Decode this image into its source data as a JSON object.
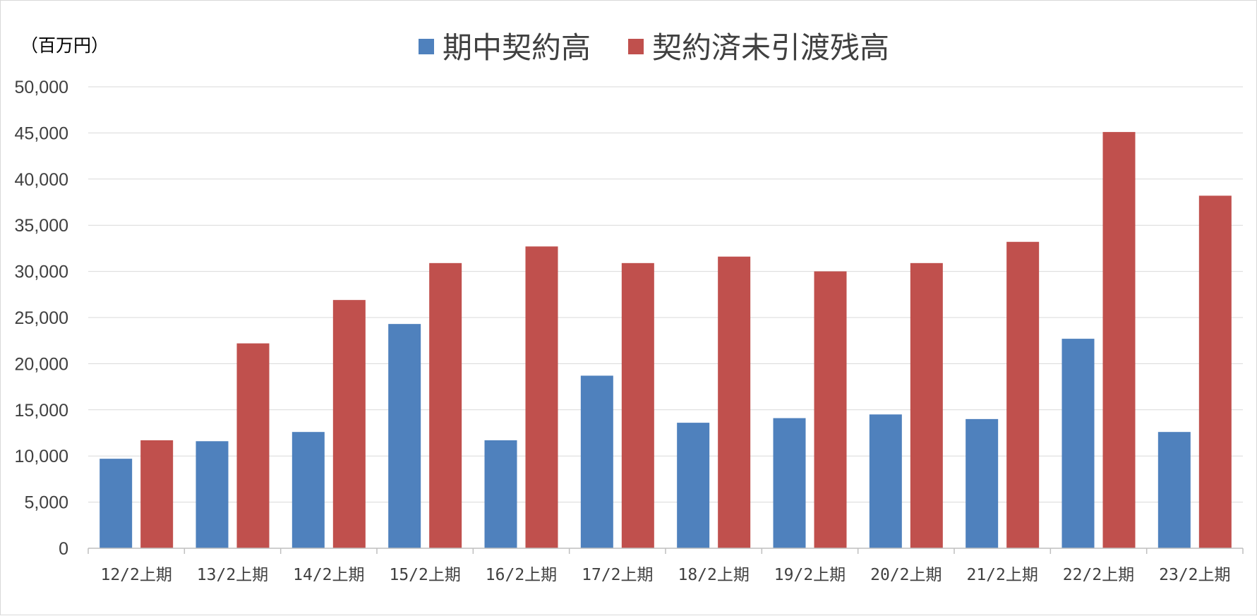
{
  "chart_data": {
    "type": "bar",
    "unit_label": "（百万円）",
    "categories": [
      "12/2上期",
      "13/2上期",
      "14/2上期",
      "15/2上期",
      "16/2上期",
      "17/2上期",
      "18/2上期",
      "19/2上期",
      "20/2上期",
      "21/2上期",
      "22/2上期",
      "23/2上期"
    ],
    "series": [
      {
        "name": "期中契約高",
        "color": "#4f81bd",
        "values": [
          9700,
          11600,
          12600,
          24300,
          11700,
          18700,
          13600,
          14100,
          14500,
          14000,
          22700,
          12600
        ]
      },
      {
        "name": "契約済未引渡残高",
        "color": "#c0504d",
        "values": [
          11700,
          22200,
          26900,
          30900,
          32700,
          30900,
          31600,
          30000,
          30900,
          33200,
          45100,
          38200
        ]
      }
    ],
    "ylim": [
      0,
      50000
    ],
    "yticks": [
      "0",
      "5,000",
      "10,000",
      "15,000",
      "20,000",
      "25,000",
      "30,000",
      "35,000",
      "40,000",
      "45,000",
      "50,000"
    ],
    "grid": true,
    "legend_position": "top-center",
    "gridline_color": "#d9d9d9",
    "axis_color": "#bfbfbf"
  }
}
